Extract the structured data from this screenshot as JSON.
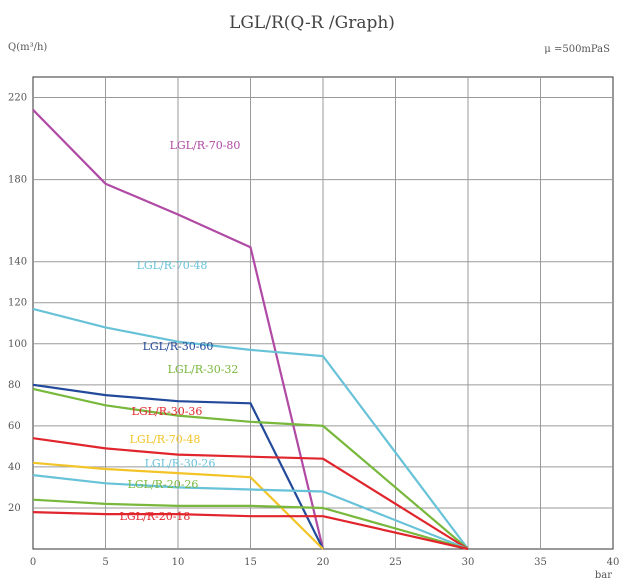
{
  "chart_data": {
    "type": "line",
    "title": "LGL/R(Q-R /Graph)",
    "ylabel": "Q(m³/h)",
    "xlabel": "bar",
    "annotation": "μ =500mPaS",
    "xlim": [
      0,
      40
    ],
    "ylim": [
      0,
      230
    ],
    "xticks": [
      0,
      5,
      10,
      15,
      20,
      25,
      30,
      35,
      40
    ],
    "yticks": [
      20,
      40,
      60,
      80,
      100,
      120,
      140,
      180,
      220
    ],
    "grid": true,
    "legend": "inline",
    "series": [
      {
        "name": "LGL/R-70-80",
        "color": "#b04aa4",
        "x": [
          0,
          5,
          10,
          15,
          20
        ],
        "y": [
          214,
          178,
          163,
          147,
          0
        ]
      },
      {
        "name": "LGL/R-70-48",
        "color": "#68c2d8",
        "x": [
          0,
          5,
          10,
          15,
          20,
          30
        ],
        "y": [
          117,
          108,
          101,
          97,
          94,
          0
        ]
      },
      {
        "name": "LGL/R-30-60",
        "color": "#22499a",
        "x": [
          0,
          5,
          10,
          15,
          20
        ],
        "y": [
          80,
          75,
          72,
          71,
          0
        ]
      },
      {
        "name": "LGL/R-30-32",
        "color": "#78b83c",
        "x": [
          0,
          5,
          10,
          15,
          20,
          30
        ],
        "y": [
          78,
          70,
          65,
          62,
          60,
          0
        ]
      },
      {
        "name": "LGL/R-30-36",
        "color": "#e0262c",
        "x": [
          0,
          5,
          10,
          15,
          20,
          30
        ],
        "y": [
          54,
          49,
          46,
          45,
          44,
          0
        ]
      },
      {
        "name": "LGL/R-70-48",
        "color": "#f2c427",
        "x": [
          0,
          5,
          10,
          15,
          20
        ],
        "y": [
          42,
          39,
          37,
          35,
          0
        ]
      },
      {
        "name": "LGL/R-30-26",
        "color": "#68c2d8",
        "x": [
          0,
          5,
          10,
          15,
          20,
          30
        ],
        "y": [
          36,
          32,
          30,
          29,
          28,
          0
        ]
      },
      {
        "name": "LGL/R-20-26",
        "color": "#78b83c",
        "x": [
          0,
          5,
          10,
          15,
          20,
          30
        ],
        "y": [
          24,
          22,
          21,
          21,
          20,
          0
        ]
      },
      {
        "name": "LGL/R-20-18",
        "color": "#e0262c",
        "x": [
          0,
          5,
          10,
          15,
          20,
          30
        ],
        "y": [
          18,
          17,
          17,
          16,
          16,
          0
        ]
      }
    ]
  }
}
